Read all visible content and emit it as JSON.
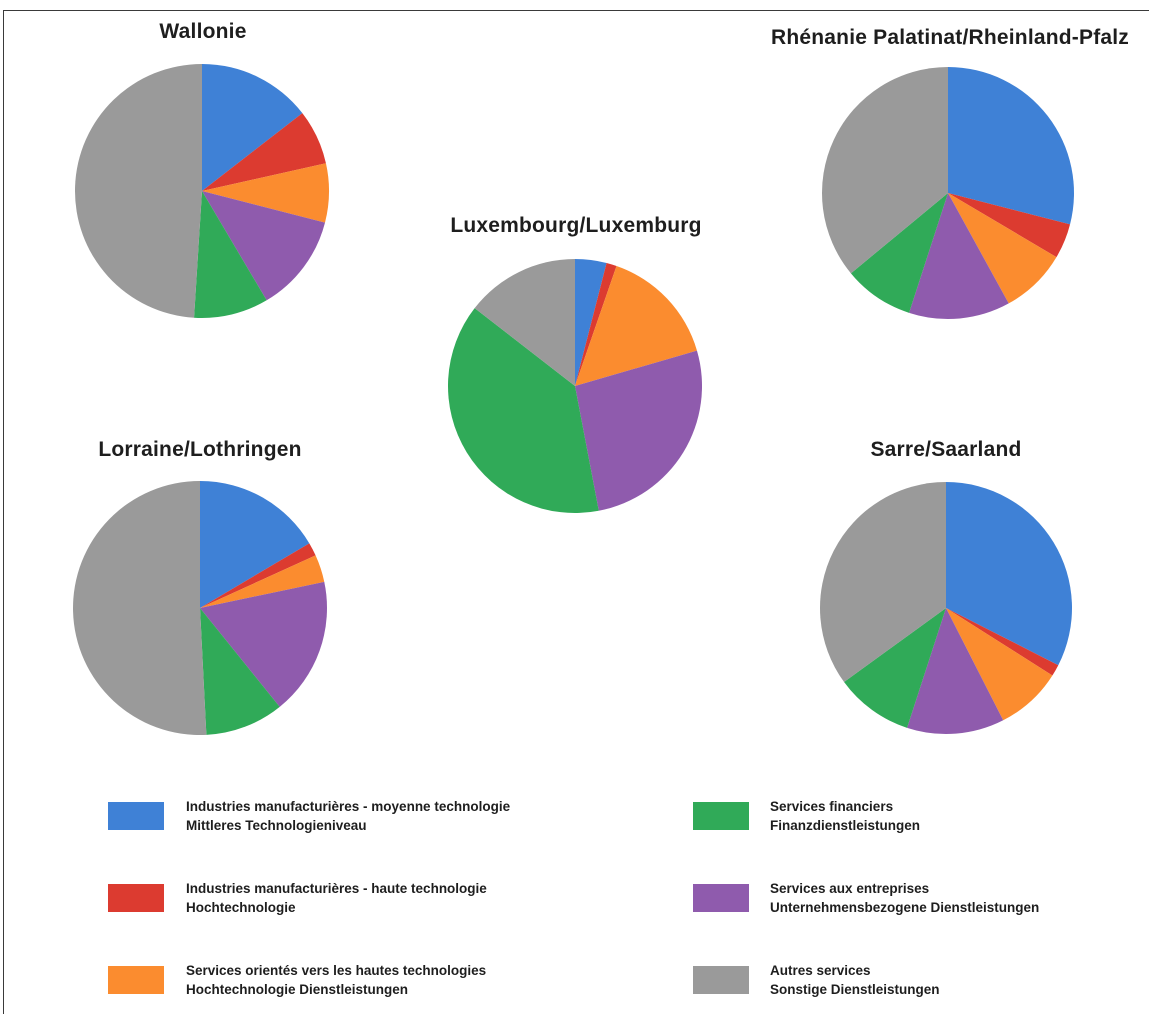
{
  "chart_data": [
    {
      "type": "pie",
      "title": "Wallonie",
      "slices": [
        {
          "label": "Industries manufacturières - moyenne technologie / Mittleres Technologieniveau",
          "value": 14.5,
          "color": "#3f81d6"
        },
        {
          "label": "Industries manufacturières - haute technologie / Hochtechnologie",
          "value": 7.0,
          "color": "#dc3b30"
        },
        {
          "label": "Services orientés vers les hautes technologies / Hochtechnologie Dienstleistungen",
          "value": 7.5,
          "color": "#fb8c2f"
        },
        {
          "label": "Services aux entreprises / Unternehmensbezogene Dienstleistungen",
          "value": 12.5,
          "color": "#8f5bad"
        },
        {
          "label": "Services financiers / Finanzdienstleistungen",
          "value": 9.5,
          "color": "#30aa58"
        },
        {
          "label": "Autres services / Sonstige Dienstleistungen",
          "value": 49.0,
          "color": "#9a9a9a"
        }
      ]
    },
    {
      "type": "pie",
      "title": "Rhénanie Palatinat/Rheinland-Pfalz",
      "slices": [
        {
          "label": "Industries manufacturières - moyenne technologie / Mittleres Technologieniveau",
          "value": 29.0,
          "color": "#3f81d6"
        },
        {
          "label": "Industries manufacturières - haute technologie / Hochtechnologie",
          "value": 4.5,
          "color": "#dc3b30"
        },
        {
          "label": "Services orientés vers les hautes technologies / Hochtechnologie Dienstleistungen",
          "value": 8.5,
          "color": "#fb8c2f"
        },
        {
          "label": "Services aux entreprises / Unternehmensbezogene Dienstleistungen",
          "value": 13.0,
          "color": "#8f5bad"
        },
        {
          "label": "Services financiers / Finanzdienstleistungen",
          "value": 9.0,
          "color": "#30aa58"
        },
        {
          "label": "Autres services / Sonstige Dienstleistungen",
          "value": 36.0,
          "color": "#9a9a9a"
        }
      ]
    },
    {
      "type": "pie",
      "title": "Luxembourg/Luxemburg",
      "slices": [
        {
          "label": "Industries manufacturières - moyenne technologie / Mittleres Technologieniveau",
          "value": 4.0,
          "color": "#3f81d6"
        },
        {
          "label": "Industries manufacturières - haute technologie / Hochtechnologie",
          "value": 1.3,
          "color": "#dc3b30"
        },
        {
          "label": "Services orientés vers les hautes technologies / Hochtechnologie Dienstleistungen",
          "value": 15.2,
          "color": "#fb8c2f"
        },
        {
          "label": "Services aux entreprises / Unternehmensbezogene Dienstleistungen",
          "value": 26.5,
          "color": "#8f5bad"
        },
        {
          "label": "Services financiers / Finanzdienstleistungen",
          "value": 38.5,
          "color": "#30aa58"
        },
        {
          "label": "Autres services / Sonstige Dienstleistungen",
          "value": 14.5,
          "color": "#9a9a9a"
        }
      ]
    },
    {
      "type": "pie",
      "title": "Lorraine/Lothringen",
      "slices": [
        {
          "label": "Industries manufacturières - moyenne technologie / Mittleres Technologieniveau",
          "value": 16.5,
          "color": "#3f81d6"
        },
        {
          "label": "Industries manufacturières - haute technologie / Hochtechnologie",
          "value": 1.7,
          "color": "#dc3b30"
        },
        {
          "label": "Services orientés vers les hautes technologies / Hochtechnologie Dienstleistungen",
          "value": 3.5,
          "color": "#fb8c2f"
        },
        {
          "label": "Services aux entreprises / Unternehmensbezogene Dienstleistungen",
          "value": 17.5,
          "color": "#8f5bad"
        },
        {
          "label": "Services financiers / Finanzdienstleistungen",
          "value": 10.0,
          "color": "#30aa58"
        },
        {
          "label": "Autres services / Sonstige Dienstleistungen",
          "value": 50.8,
          "color": "#9a9a9a"
        }
      ]
    },
    {
      "type": "pie",
      "title": "Sarre/Saarland",
      "slices": [
        {
          "label": "Industries manufacturières - moyenne technologie / Mittleres Technologieniveau",
          "value": 32.5,
          "color": "#3f81d6"
        },
        {
          "label": "Industries manufacturières - haute technologie / Hochtechnologie",
          "value": 1.5,
          "color": "#dc3b30"
        },
        {
          "label": "Services orientés vers les hautes technologies / Hochtechnologie Dienstleistungen",
          "value": 8.5,
          "color": "#fb8c2f"
        },
        {
          "label": "Services aux entreprises / Unternehmensbezogene Dienstleistungen",
          "value": 12.5,
          "color": "#8f5bad"
        },
        {
          "label": "Services financiers / Finanzdienstleistungen",
          "value": 10.0,
          "color": "#30aa58"
        },
        {
          "label": "Autres services / Sonstige Dienstleistungen",
          "value": 35.0,
          "color": "#9a9a9a"
        }
      ]
    }
  ],
  "legend": [
    {
      "line1": "Industries manufacturières - moyenne technologie",
      "line2": "Mittleres Technologieniveau",
      "color": "#3f81d6"
    },
    {
      "line1": "Industries manufacturières - haute technologie",
      "line2": "Hochtechnologie",
      "color": "#dc3b30"
    },
    {
      "line1": "Services orientés vers les hautes technologies",
      "line2": "Hochtechnologie Dienstleistungen",
      "color": "#fb8c2f"
    },
    {
      "line1": "Services financiers",
      "line2": "Finanzdienstleistungen",
      "color": "#30aa58"
    },
    {
      "line1": "Services aux entreprises",
      "line2": "Unternehmensbezogene Dienstleistungen",
      "color": "#8f5bad"
    },
    {
      "line1": "Autres services",
      "line2": "Sonstige Dienstleistungen",
      "color": "#9a9a9a"
    }
  ]
}
